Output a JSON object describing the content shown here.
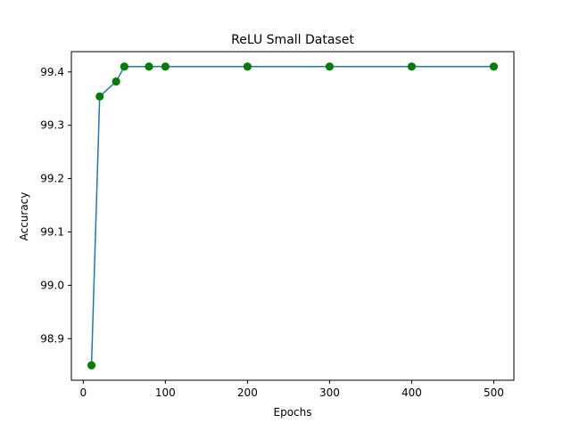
{
  "chart_data": {
    "type": "line",
    "title": "ReLU Small Dataset",
    "xlabel": "Epochs",
    "ylabel": "Accuracy",
    "x": [
      10,
      20,
      40,
      50,
      80,
      100,
      200,
      300,
      400,
      500
    ],
    "y": [
      98.85,
      99.354,
      99.382,
      99.41,
      99.41,
      99.41,
      99.41,
      99.41,
      99.41,
      99.41
    ],
    "xlim": [
      -14.5,
      524.5
    ],
    "ylim": [
      98.822,
      99.438
    ],
    "xticks": [
      0,
      100,
      200,
      300,
      400,
      500
    ],
    "xtick_labels": [
      "0",
      "100",
      "200",
      "300",
      "400",
      "500"
    ],
    "yticks": [
      98.9,
      99.0,
      99.1,
      99.2,
      99.3,
      99.4
    ],
    "ytick_labels": [
      "98.9",
      "99.0",
      "99.1",
      "99.2",
      "99.3",
      "99.4"
    ],
    "grid": false,
    "line_color": "#1f77b4",
    "marker_color": "#008000"
  }
}
